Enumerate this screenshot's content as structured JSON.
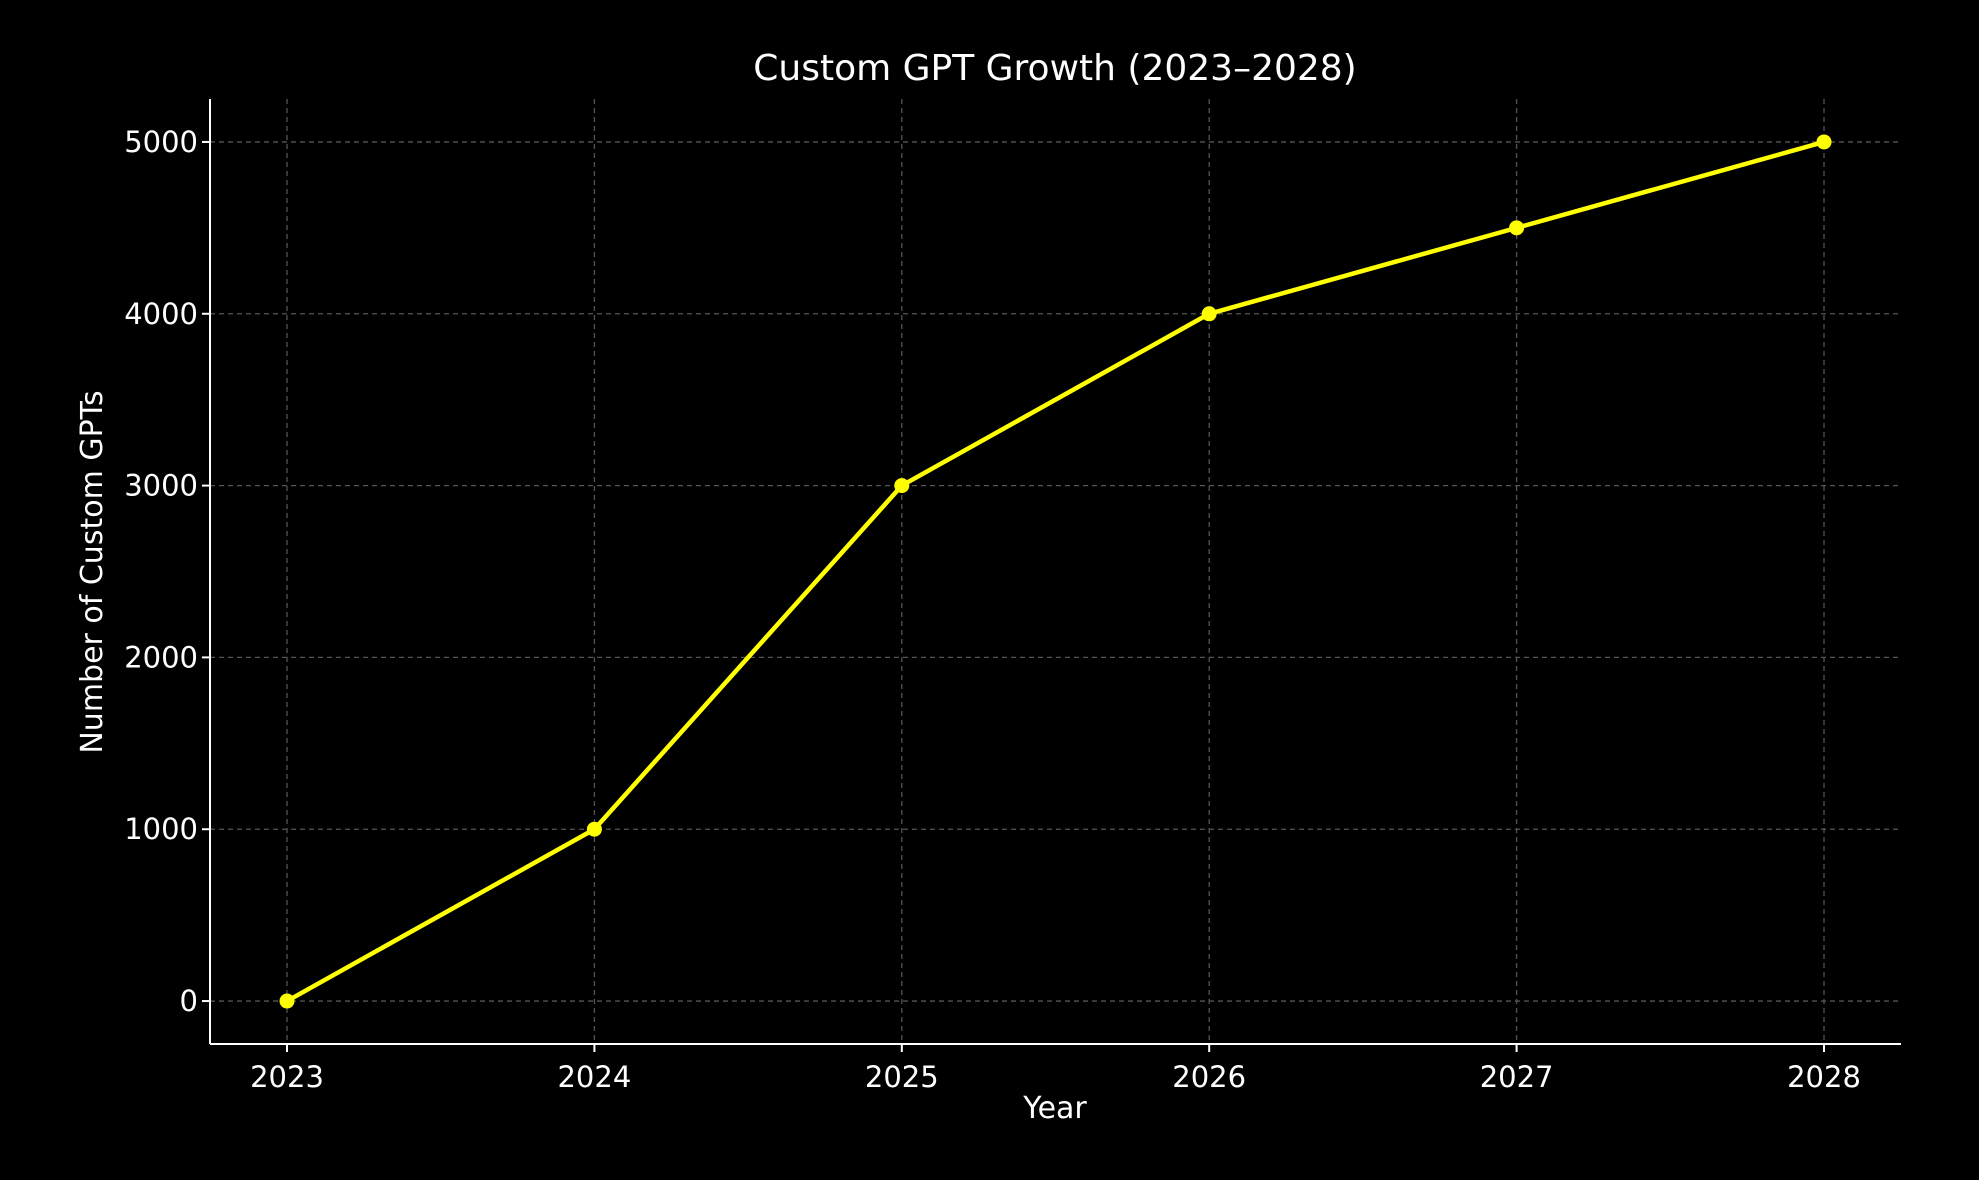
{
  "chart_data": {
    "type": "line",
    "title": "Custom GPT Growth (2023–2028)",
    "xlabel": "Year",
    "ylabel": "Number of Custom GPTs",
    "x": [
      "2023",
      "2024",
      "2025",
      "2026",
      "2027",
      "2028"
    ],
    "series": [
      {
        "values": [
          0,
          1000,
          3000,
          4000,
          4500,
          5000
        ],
        "color": "#ffff00",
        "marker": "circle"
      }
    ],
    "y_ticks": [
      "0",
      "1000",
      "2000",
      "3000",
      "4000",
      "5000"
    ],
    "ylim": [
      -250,
      5250
    ],
    "grid": true,
    "background_color": "#000000",
    "text_color": "#ffffff"
  }
}
